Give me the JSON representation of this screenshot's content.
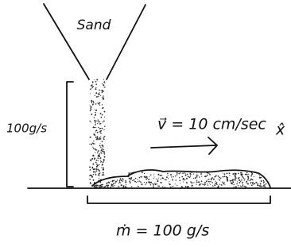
{
  "labels": {
    "hopper": "Sand",
    "drop_rate": "100g/s",
    "velocity": "v⃗ = 10 cm/sec",
    "direction": "x̂",
    "mass_rate": "ṁ = 100 g/s"
  }
}
